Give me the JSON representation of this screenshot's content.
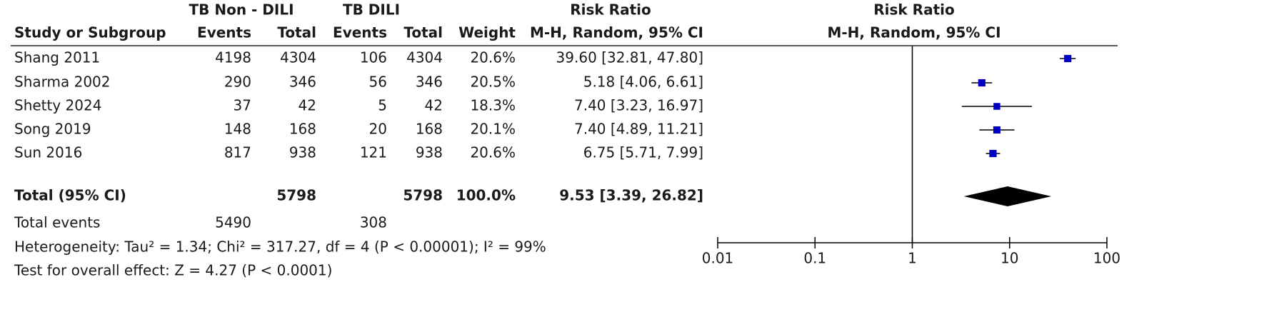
{
  "chart_data": {
    "type": "forest",
    "group_1": "TB Non - DILI",
    "group_2": "TB DILI",
    "columns": {
      "study": "Study or Subgroup",
      "events_1": "Events",
      "total_1": "Total",
      "events_2": "Events",
      "total_2": "Total",
      "weight": "Weight"
    },
    "effect_title": "Risk Ratio",
    "effect_method": "M-H, Random, 95% CI",
    "studies": [
      {
        "name": "Shang 2011",
        "events_1": 4198,
        "total_1": 4304,
        "events_2": 106,
        "total_2": 4304,
        "weight": 20.6,
        "weight_label": "20.6%",
        "rr": 39.6,
        "ci_low": 32.81,
        "ci_high": 47.8,
        "rr_label": "39.60 [32.81, 47.80]"
      },
      {
        "name": "Sharma 2002",
        "events_1": 290,
        "total_1": 346,
        "events_2": 56,
        "total_2": 346,
        "weight": 20.5,
        "weight_label": "20.5%",
        "rr": 5.18,
        "ci_low": 4.06,
        "ci_high": 6.61,
        "rr_label": "5.18 [4.06, 6.61]"
      },
      {
        "name": "Shetty 2024",
        "events_1": 37,
        "total_1": 42,
        "events_2": 5,
        "total_2": 42,
        "weight": 18.3,
        "weight_label": "18.3%",
        "rr": 7.4,
        "ci_low": 3.23,
        "ci_high": 16.97,
        "rr_label": "7.40 [3.23, 16.97]"
      },
      {
        "name": "Song 2019",
        "events_1": 148,
        "total_1": 168,
        "events_2": 20,
        "total_2": 168,
        "weight": 20.1,
        "weight_label": "20.1%",
        "rr": 7.4,
        "ci_low": 4.89,
        "ci_high": 11.21,
        "rr_label": "7.40 [4.89, 11.21]"
      },
      {
        "name": "Sun 2016",
        "events_1": 817,
        "total_1": 938,
        "events_2": 121,
        "total_2": 938,
        "weight": 20.6,
        "weight_label": "20.6%",
        "rr": 6.75,
        "ci_low": 5.71,
        "ci_high": 7.99,
        "rr_label": "6.75 [5.71, 7.99]"
      }
    ],
    "total": {
      "name": "Total (95% CI)",
      "total_1": 5798,
      "total_2": 5798,
      "weight": 100.0,
      "weight_label": "100.0%",
      "rr": 9.53,
      "ci_low": 3.39,
      "ci_high": 26.82,
      "rr_label": "9.53 [3.39, 26.82]"
    },
    "total_events": {
      "name": "Total events",
      "events_1": 5490,
      "events_2": 308
    },
    "heterogeneity": "Heterogeneity: Tau² = 1.34; Chi² = 317.27, df = 4 (P < 0.00001); I² = 99%",
    "overall_effect": "Test for overall effect: Z = 4.27 (P < 0.0001)",
    "log_scale": true,
    "xlim": [
      0.01,
      100
    ],
    "xticks": [
      0.01,
      0.1,
      1,
      10,
      100
    ],
    "square_color": "#0000c0",
    "diamond_color": "#000000"
  }
}
